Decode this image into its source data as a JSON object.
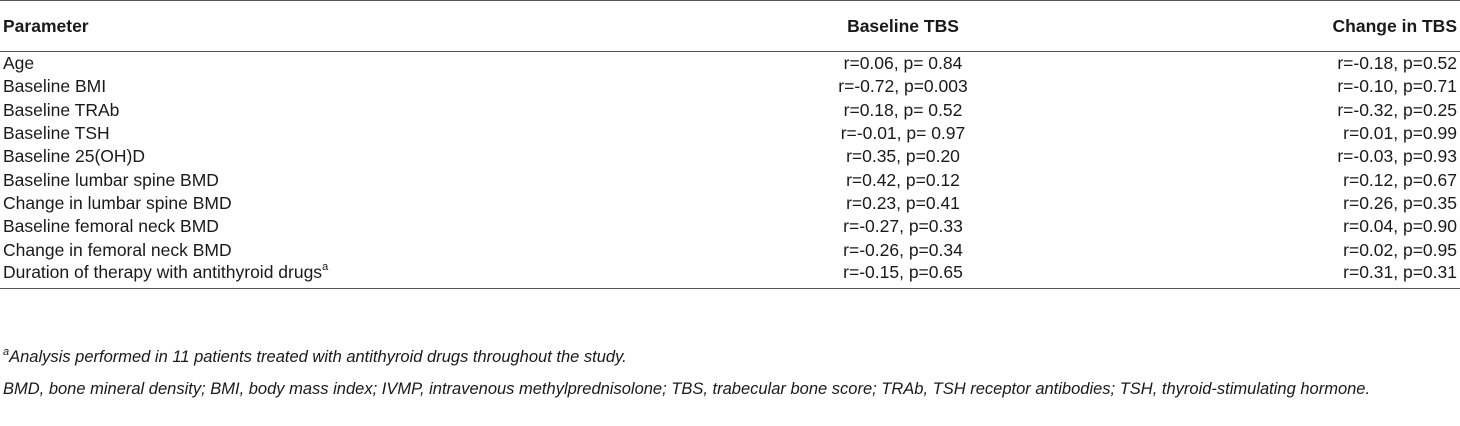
{
  "table": {
    "headers": {
      "parameter": "Parameter",
      "baseline_tbs": "Baseline TBS",
      "change_tbs": "Change in TBS"
    },
    "rows": [
      {
        "parameter": "Age",
        "sup": "",
        "baseline": "r=0.06, p= 0.84",
        "change": "r=-0.18, p=0.52"
      },
      {
        "parameter": "Baseline BMI",
        "sup": "",
        "baseline": "r=-0.72, p=0.003",
        "change": "r=-0.10, p=0.71"
      },
      {
        "parameter": "Baseline TRAb",
        "sup": "",
        "baseline": "r=0.18, p= 0.52",
        "change": "r=-0.32, p=0.25"
      },
      {
        "parameter": "Baseline TSH",
        "sup": "",
        "baseline": "r=-0.01, p= 0.97",
        "change": "r=0.01, p=0.99"
      },
      {
        "parameter": "Baseline 25(OH)D",
        "sup": "",
        "baseline": "r=0.35, p=0.20",
        "change": "r=-0.03, p=0.93"
      },
      {
        "parameter": "Baseline lumbar spine BMD",
        "sup": "",
        "baseline": "r=0.42, p=0.12",
        "change": "r=0.12, p=0.67"
      },
      {
        "parameter": "Change in lumbar spine BMD",
        "sup": "",
        "baseline": "r=0.23, p=0.41",
        "change": "r=0.26, p=0.35"
      },
      {
        "parameter": "Baseline femoral neck BMD",
        "sup": "",
        "baseline": "r=-0.27, p=0.33",
        "change": "r=0.04, p=0.90"
      },
      {
        "parameter": "Change in femoral neck BMD",
        "sup": "",
        "baseline": "r=-0.26, p=0.34",
        "change": "r=0.02, p=0.95"
      },
      {
        "parameter": "Duration of therapy with antithyroid drugs",
        "sup": "a",
        "baseline": "r=-0.15, p=0.65",
        "change": "r=0.31, p=0.31"
      }
    ]
  },
  "footnotes": {
    "a_marker": "a",
    "a_text": "Analysis performed in 11 patients treated with antithyroid drugs throughout the study.",
    "abbreviations": "BMD, bone mineral density; BMI, body mass index; IVMP, intravenous methylprednisolone; TBS, trabecular bone score; TRAb, TSH receptor antibodies; TSH, thyroid-stimulating hormone."
  }
}
